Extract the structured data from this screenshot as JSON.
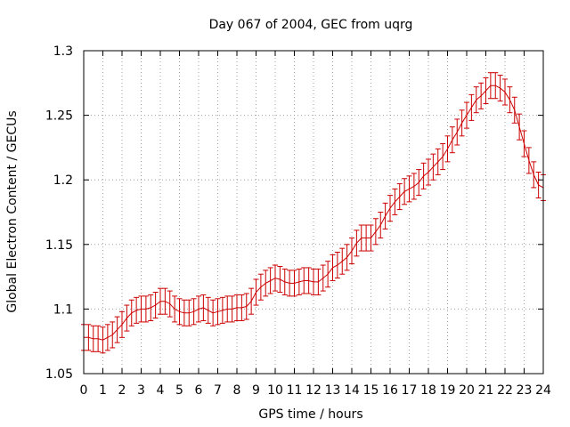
{
  "chart_data": {
    "type": "line",
    "title": "Day 067 of 2004, GEC from uqrg",
    "xlabel": "GPS time / hours",
    "ylabel": "Global Electron Content / GECUs",
    "xlim": [
      0,
      24
    ],
    "ylim": [
      1.05,
      1.3
    ],
    "x_ticks": [
      0,
      1,
      2,
      3,
      4,
      5,
      6,
      7,
      8,
      9,
      10,
      11,
      12,
      13,
      14,
      15,
      16,
      17,
      18,
      19,
      20,
      21,
      22,
      23,
      24
    ],
    "y_ticks": [
      1.05,
      1.1,
      1.15,
      1.2,
      1.25,
      1.3
    ],
    "y_tick_labels": [
      "1.05",
      "1.1",
      "1.15",
      "1.2",
      "1.25",
      "1.3"
    ],
    "grid": true,
    "error_bar": 0.01,
    "colors": {
      "series": "#cc0000",
      "grid": "#a0a0a0",
      "axis": "#000000"
    },
    "series": [
      {
        "name": "GEC",
        "x": [
          0,
          0.25,
          0.5,
          0.75,
          1,
          1.25,
          1.5,
          1.75,
          2,
          2.25,
          2.5,
          2.75,
          3,
          3.25,
          3.5,
          3.75,
          4,
          4.25,
          4.5,
          4.75,
          5,
          5.25,
          5.5,
          5.75,
          6,
          6.25,
          6.5,
          6.75,
          7,
          7.25,
          7.5,
          7.75,
          8,
          8.25,
          8.5,
          8.75,
          9,
          9.25,
          9.5,
          9.75,
          10,
          10.25,
          10.5,
          10.75,
          11,
          11.25,
          11.5,
          11.75,
          12,
          12.25,
          12.5,
          12.75,
          13,
          13.25,
          13.5,
          13.75,
          14,
          14.25,
          14.5,
          14.75,
          15,
          15.25,
          15.5,
          15.75,
          16,
          16.25,
          16.5,
          16.75,
          17,
          17.25,
          17.5,
          17.75,
          18,
          18.25,
          18.5,
          18.75,
          19,
          19.25,
          19.5,
          19.75,
          20,
          20.25,
          20.5,
          20.75,
          21,
          21.25,
          21.5,
          21.75,
          22,
          22.25,
          22.5,
          22.75,
          23,
          23.25,
          23.5,
          23.75,
          24
        ],
        "values": [
          1.078,
          1.078,
          1.077,
          1.077,
          1.076,
          1.078,
          1.08,
          1.084,
          1.088,
          1.093,
          1.097,
          1.099,
          1.1,
          1.1,
          1.101,
          1.103,
          1.106,
          1.106,
          1.104,
          1.1,
          1.098,
          1.097,
          1.097,
          1.098,
          1.1,
          1.101,
          1.099,
          1.097,
          1.098,
          1.099,
          1.1,
          1.1,
          1.101,
          1.101,
          1.102,
          1.106,
          1.113,
          1.117,
          1.12,
          1.122,
          1.124,
          1.123,
          1.121,
          1.12,
          1.12,
          1.121,
          1.122,
          1.122,
          1.121,
          1.121,
          1.124,
          1.127,
          1.132,
          1.134,
          1.137,
          1.14,
          1.145,
          1.151,
          1.155,
          1.155,
          1.155,
          1.16,
          1.165,
          1.172,
          1.178,
          1.183,
          1.187,
          1.191,
          1.193,
          1.195,
          1.198,
          1.203,
          1.206,
          1.21,
          1.214,
          1.218,
          1.224,
          1.231,
          1.237,
          1.244,
          1.25,
          1.256,
          1.262,
          1.265,
          1.269,
          1.273,
          1.273,
          1.271,
          1.268,
          1.262,
          1.254,
          1.241,
          1.228,
          1.215,
          1.204,
          1.196,
          1.194
        ]
      }
    ]
  }
}
